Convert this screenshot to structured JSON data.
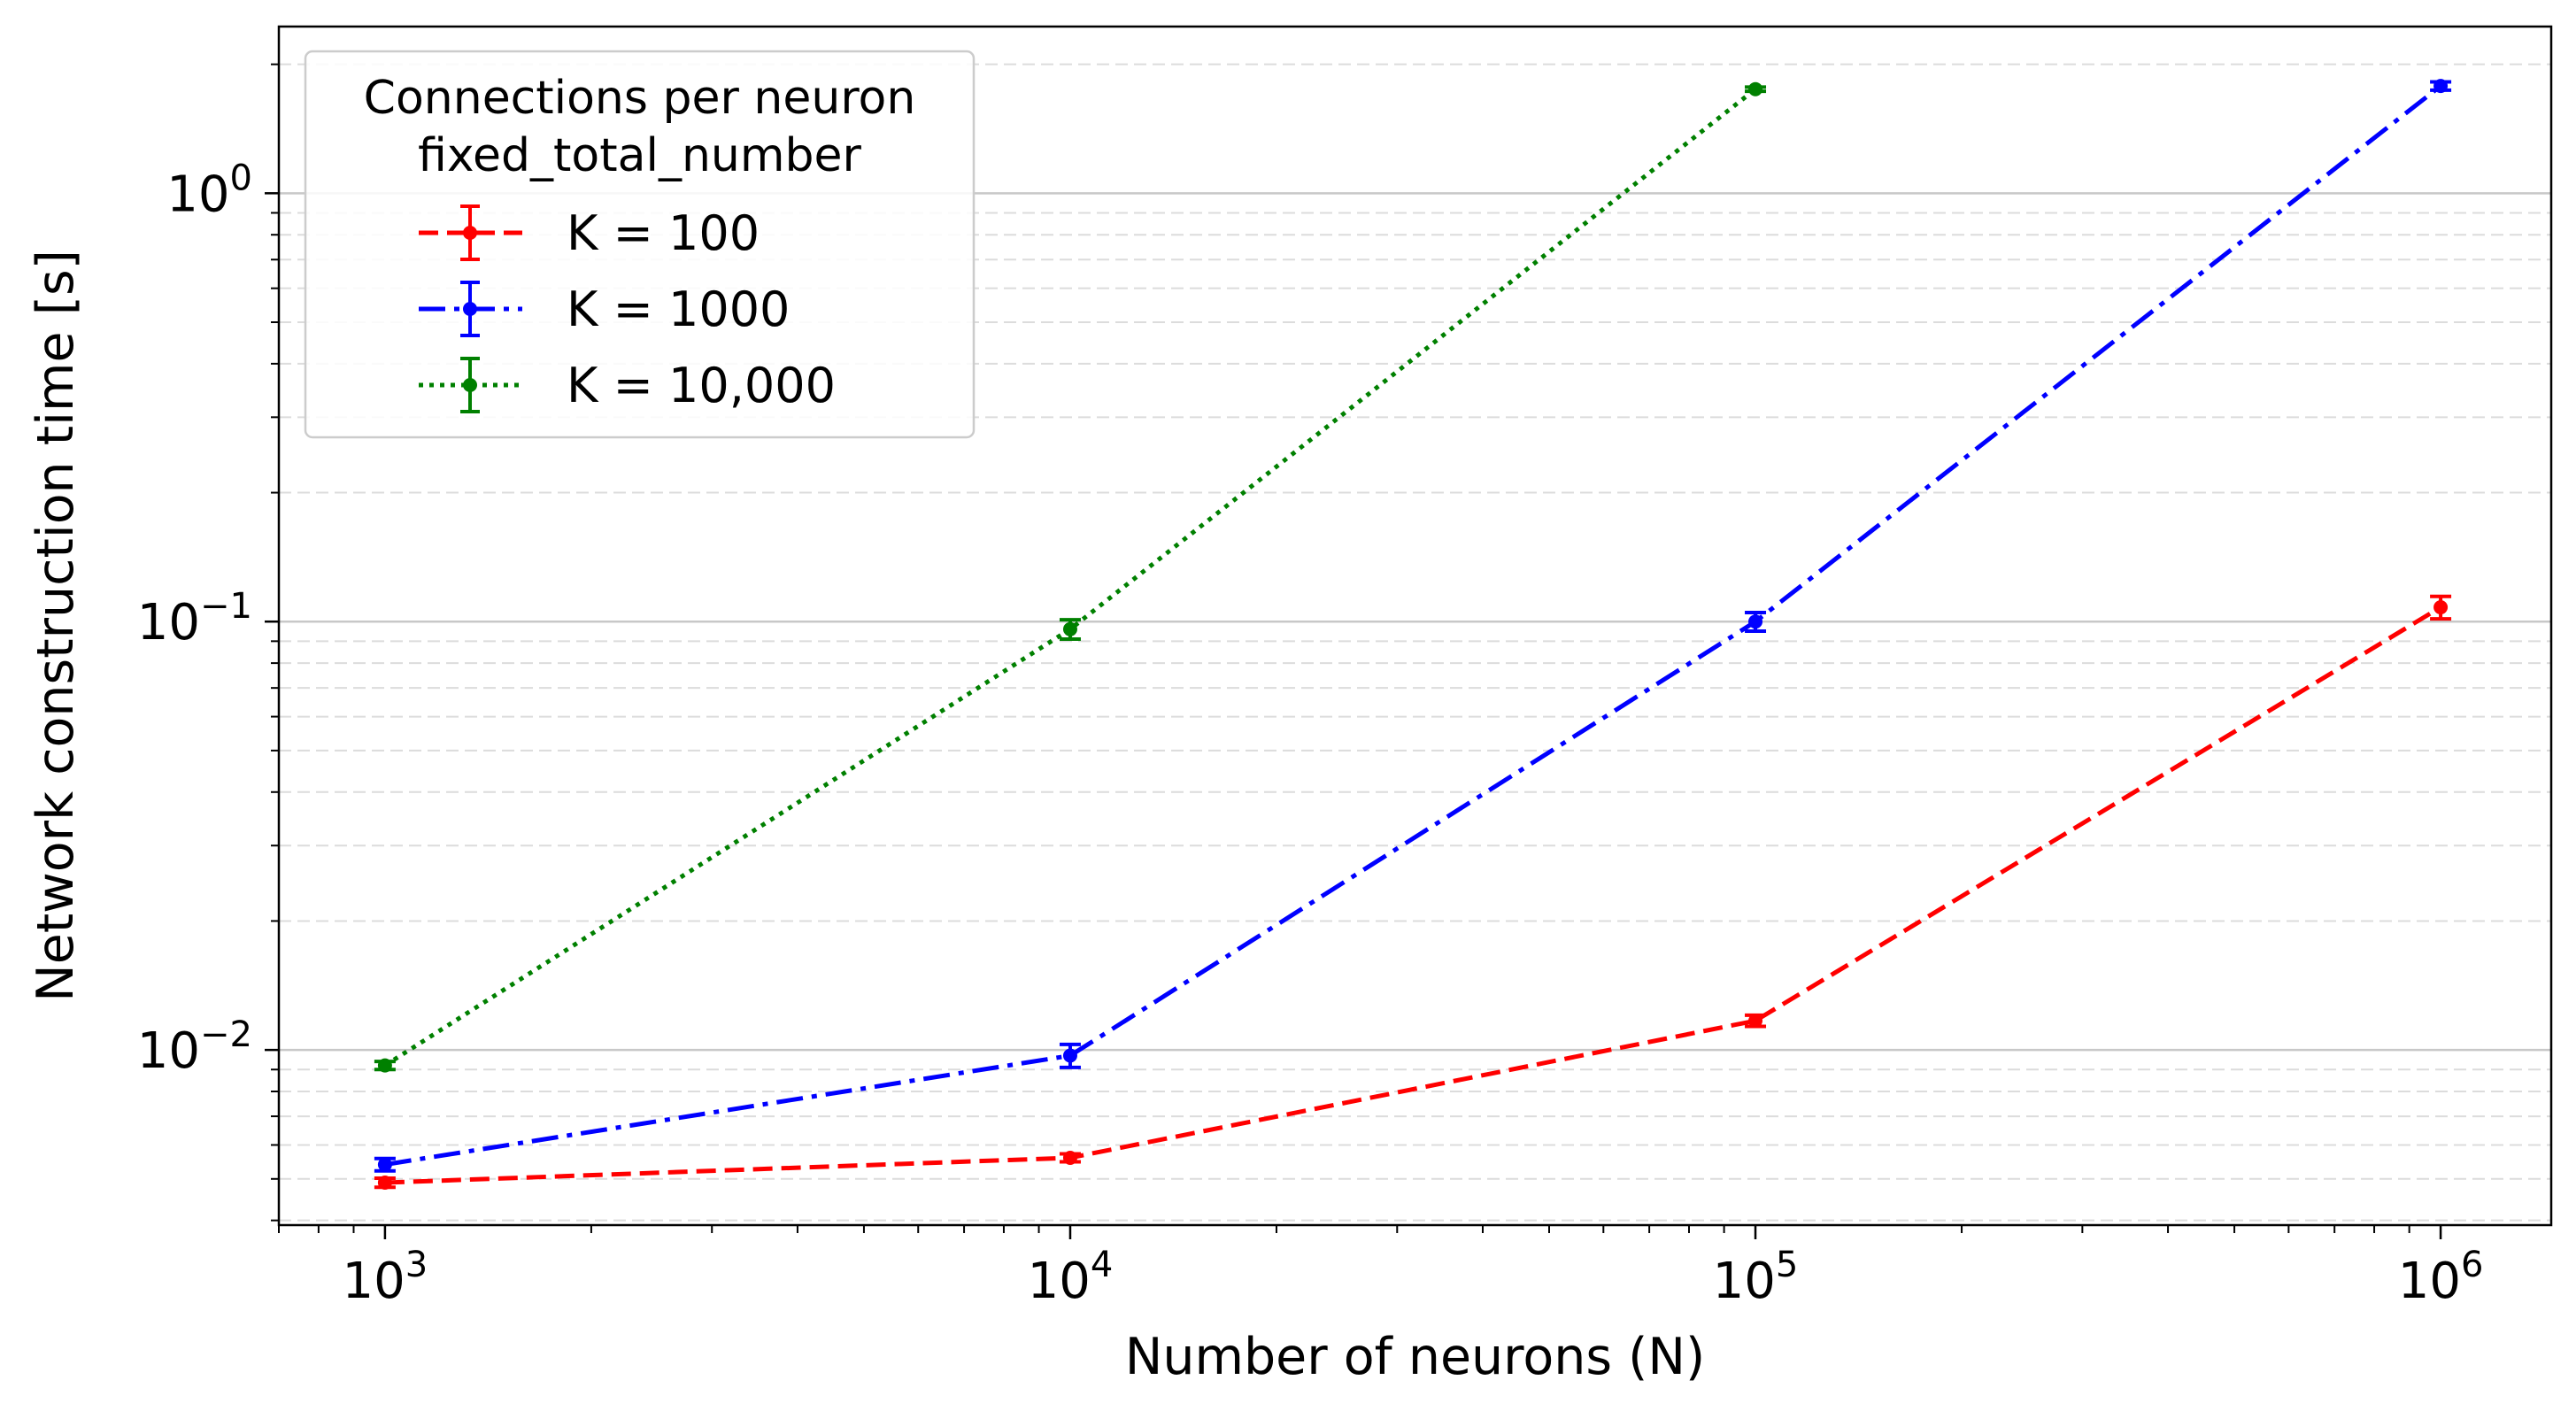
{
  "chart_data": {
    "type": "line",
    "title": "",
    "xlabel": "Number of neurons (N)",
    "ylabel": "Network construction time [s]",
    "xscale": "log",
    "yscale": "log",
    "xlim": [
      700,
      1450000
    ],
    "ylim": [
      0.0039,
      2.45
    ],
    "x_ticks": [
      {
        "value": 1000,
        "base": "10",
        "exp": "3"
      },
      {
        "value": 10000,
        "base": "10",
        "exp": "4"
      },
      {
        "value": 100000,
        "base": "10",
        "exp": "5"
      },
      {
        "value": 1000000,
        "base": "10",
        "exp": "6"
      }
    ],
    "y_ticks": [
      {
        "value": 0.01,
        "base": "10",
        "exp": "−2"
      },
      {
        "value": 0.1,
        "base": "10",
        "exp": "−1"
      },
      {
        "value": 1,
        "base": "10",
        "exp": "0"
      }
    ],
    "grid": {
      "major_y": true,
      "minor_y": true,
      "x": false
    },
    "legend": {
      "title_line1": "Connections per neuron",
      "title_line2": "fixed_total_number",
      "placement": "top-left"
    },
    "x": [
      1000,
      10000,
      100000,
      1000000
    ],
    "series": [
      {
        "name": "K = 100",
        "color": "#ff0000",
        "linestyle": "dashed",
        "x": [
          1000,
          10000,
          100000,
          1000000
        ],
        "y": [
          0.0049,
          0.0056,
          0.0117,
          0.108
        ],
        "yerr": [
          0.00012,
          0.00012,
          0.00035,
          0.0065
        ]
      },
      {
        "name": "K = 1000",
        "color": "#0000ff",
        "linestyle": "dashdot",
        "x": [
          1000,
          10000,
          100000,
          1000000
        ],
        "y": [
          0.0054,
          0.0097,
          0.1,
          1.78
        ],
        "yerr": [
          0.00018,
          0.0006,
          0.005,
          0.04
        ]
      },
      {
        "name": "K = 10,000",
        "color": "#008000",
        "linestyle": "dotted",
        "x": [
          1000,
          10000,
          100000
        ],
        "y": [
          0.0092,
          0.096,
          1.75
        ],
        "yerr": [
          0.0002,
          0.005,
          0.02
        ]
      }
    ]
  }
}
